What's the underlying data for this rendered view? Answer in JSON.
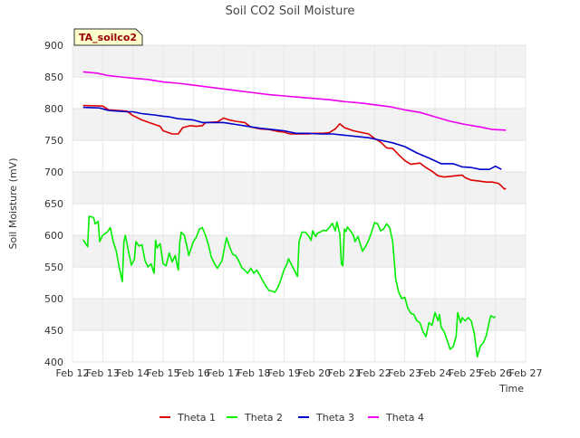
{
  "chart_data": {
    "type": "line",
    "title": "Soil CO2 Soil Moisture",
    "xlabel": "Time",
    "ylabel": "Soil Moisture (mV)",
    "badge": "TA_soilco2",
    "xlim": [
      0,
      15
    ],
    "ylim": [
      400,
      900
    ],
    "x_tick_labels": [
      "Feb 12",
      "Feb 13",
      "Feb 14",
      "Feb 15",
      "Feb 16",
      "Feb 17",
      "Feb 18",
      "Feb 19",
      "Feb 20",
      "Feb 21",
      "Feb 22",
      "Feb 23",
      "Feb 24",
      "Feb 25",
      "Feb 26",
      "Feb 27"
    ],
    "y_ticks": [
      400,
      450,
      500,
      550,
      600,
      650,
      700,
      750,
      800,
      850,
      900
    ],
    "legend": [
      "Theta 1",
      "Theta 2",
      "Theta 3",
      "Theta 4"
    ],
    "series": [
      {
        "name": "Theta 1",
        "color": "#dd0000",
        "points": [
          [
            0.35,
            805
          ],
          [
            1.0,
            804
          ],
          [
            1.2,
            798
          ],
          [
            1.8,
            796
          ],
          [
            2.0,
            789
          ],
          [
            2.3,
            782
          ],
          [
            2.6,
            777
          ],
          [
            2.9,
            772
          ],
          [
            3.0,
            765
          ],
          [
            3.3,
            760
          ],
          [
            3.5,
            760
          ],
          [
            3.65,
            770
          ],
          [
            3.9,
            773
          ],
          [
            4.1,
            772
          ],
          [
            4.3,
            773
          ],
          [
            4.4,
            778
          ],
          [
            4.8,
            779
          ],
          [
            5.0,
            785
          ],
          [
            5.2,
            782
          ],
          [
            5.4,
            780
          ],
          [
            5.7,
            778
          ],
          [
            5.9,
            771
          ],
          [
            6.2,
            768
          ],
          [
            6.5,
            767
          ],
          [
            6.8,
            764
          ],
          [
            7.0,
            763
          ],
          [
            7.2,
            760
          ],
          [
            7.5,
            760
          ],
          [
            7.8,
            760
          ],
          [
            8.0,
            761
          ],
          [
            8.3,
            761
          ],
          [
            8.5,
            762
          ],
          [
            8.7,
            768
          ],
          [
            8.85,
            776
          ],
          [
            9.0,
            770
          ],
          [
            9.3,
            765
          ],
          [
            9.6,
            762
          ],
          [
            9.8,
            760
          ],
          [
            10.0,
            753
          ],
          [
            10.2,
            747
          ],
          [
            10.4,
            738
          ],
          [
            10.6,
            737
          ],
          [
            10.8,
            727
          ],
          [
            11.0,
            718
          ],
          [
            11.2,
            712
          ],
          [
            11.5,
            714
          ],
          [
            11.7,
            707
          ],
          [
            11.9,
            701
          ],
          [
            12.1,
            694
          ],
          [
            12.3,
            692
          ],
          [
            12.5,
            693
          ],
          [
            12.7,
            694
          ],
          [
            12.9,
            695
          ],
          [
            13.0,
            691
          ],
          [
            13.2,
            687
          ],
          [
            13.4,
            686
          ],
          [
            13.7,
            684
          ],
          [
            13.9,
            684
          ],
          [
            14.1,
            682
          ],
          [
            14.2,
            678
          ],
          [
            14.3,
            673
          ],
          [
            14.35,
            674
          ]
        ]
      },
      {
        "name": "Theta 2",
        "color": "#00ee00",
        "points": [
          [
            0.35,
            593
          ],
          [
            0.5,
            582
          ],
          [
            0.55,
            630
          ],
          [
            0.7,
            628
          ],
          [
            0.75,
            618
          ],
          [
            0.85,
            622
          ],
          [
            0.9,
            590
          ],
          [
            1.0,
            600
          ],
          [
            1.15,
            605
          ],
          [
            1.25,
            612
          ],
          [
            1.35,
            590
          ],
          [
            1.45,
            575
          ],
          [
            1.55,
            548
          ],
          [
            1.65,
            527
          ],
          [
            1.7,
            590
          ],
          [
            1.75,
            600
          ],
          [
            1.85,
            575
          ],
          [
            1.95,
            553
          ],
          [
            2.05,
            562
          ],
          [
            2.1,
            590
          ],
          [
            2.2,
            583
          ],
          [
            2.3,
            585
          ],
          [
            2.4,
            560
          ],
          [
            2.5,
            550
          ],
          [
            2.6,
            555
          ],
          [
            2.7,
            540
          ],
          [
            2.75,
            592
          ],
          [
            2.8,
            580
          ],
          [
            2.9,
            587
          ],
          [
            3.0,
            555
          ],
          [
            3.1,
            552
          ],
          [
            3.2,
            572
          ],
          [
            3.3,
            558
          ],
          [
            3.4,
            568
          ],
          [
            3.5,
            545
          ],
          [
            3.55,
            588
          ],
          [
            3.6,
            605
          ],
          [
            3.7,
            600
          ],
          [
            3.8,
            580
          ],
          [
            3.85,
            568
          ],
          [
            4.0,
            590
          ],
          [
            4.1,
            597
          ],
          [
            4.2,
            610
          ],
          [
            4.3,
            612
          ],
          [
            4.4,
            600
          ],
          [
            4.5,
            585
          ],
          [
            4.6,
            565
          ],
          [
            4.7,
            555
          ],
          [
            4.8,
            548
          ],
          [
            4.95,
            560
          ],
          [
            5.05,
            585
          ],
          [
            5.1,
            596
          ],
          [
            5.2,
            582
          ],
          [
            5.3,
            570
          ],
          [
            5.4,
            568
          ],
          [
            5.5,
            560
          ],
          [
            5.6,
            549
          ],
          [
            5.7,
            545
          ],
          [
            5.8,
            540
          ],
          [
            5.9,
            548
          ],
          [
            6.0,
            540
          ],
          [
            6.1,
            545
          ],
          [
            6.2,
            537
          ],
          [
            6.3,
            528
          ],
          [
            6.4,
            520
          ],
          [
            6.5,
            513
          ],
          [
            6.6,
            512
          ],
          [
            6.7,
            510
          ],
          [
            6.8,
            518
          ],
          [
            6.9,
            530
          ],
          [
            7.0,
            545
          ],
          [
            7.1,
            555
          ],
          [
            7.15,
            563
          ],
          [
            7.3,
            549
          ],
          [
            7.45,
            535
          ],
          [
            7.5,
            590
          ],
          [
            7.6,
            605
          ],
          [
            7.7,
            605
          ],
          [
            7.8,
            600
          ],
          [
            7.9,
            592
          ],
          [
            7.95,
            607
          ],
          [
            8.05,
            598
          ],
          [
            8.1,
            603
          ],
          [
            8.2,
            605
          ],
          [
            8.3,
            608
          ],
          [
            8.4,
            607
          ],
          [
            8.5,
            612
          ],
          [
            8.6,
            619
          ],
          [
            8.7,
            607
          ],
          [
            8.75,
            621
          ],
          [
            8.85,
            602
          ],
          [
            8.9,
            555
          ],
          [
            8.95,
            552
          ],
          [
            9.0,
            610
          ],
          [
            9.05,
            606
          ],
          [
            9.1,
            613
          ],
          [
            9.2,
            607
          ],
          [
            9.3,
            600
          ],
          [
            9.35,
            590
          ],
          [
            9.45,
            598
          ],
          [
            9.5,
            590
          ],
          [
            9.6,
            575
          ],
          [
            9.7,
            582
          ],
          [
            9.8,
            592
          ],
          [
            9.9,
            605
          ],
          [
            10.0,
            620
          ],
          [
            10.1,
            618
          ],
          [
            10.2,
            607
          ],
          [
            10.3,
            610
          ],
          [
            10.4,
            618
          ],
          [
            10.5,
            612
          ],
          [
            10.6,
            590
          ],
          [
            10.7,
            530
          ],
          [
            10.8,
            510
          ],
          [
            10.9,
            500
          ],
          [
            11.0,
            502
          ],
          [
            11.1,
            485
          ],
          [
            11.2,
            477
          ],
          [
            11.3,
            475
          ],
          [
            11.4,
            465
          ],
          [
            11.5,
            462
          ],
          [
            11.6,
            448
          ],
          [
            11.7,
            440
          ],
          [
            11.8,
            462
          ],
          [
            11.9,
            458
          ],
          [
            12.0,
            478
          ],
          [
            12.1,
            465
          ],
          [
            12.15,
            475
          ],
          [
            12.2,
            455
          ],
          [
            12.3,
            448
          ],
          [
            12.4,
            435
          ],
          [
            12.5,
            420
          ],
          [
            12.6,
            424
          ],
          [
            12.7,
            440
          ],
          [
            12.75,
            478
          ],
          [
            12.85,
            462
          ],
          [
            12.9,
            470
          ],
          [
            13.0,
            465
          ],
          [
            13.1,
            470
          ],
          [
            13.2,
            465
          ],
          [
            13.3,
            445
          ],
          [
            13.4,
            408
          ],
          [
            13.5,
            425
          ],
          [
            13.6,
            430
          ],
          [
            13.7,
            442
          ],
          [
            13.8,
            465
          ],
          [
            13.85,
            473
          ],
          [
            13.95,
            470
          ],
          [
            14.0,
            472
          ]
        ]
      },
      {
        "name": "Theta 3",
        "color": "#0000cc",
        "points": [
          [
            0.35,
            802
          ],
          [
            0.9,
            801
          ],
          [
            1.2,
            797
          ],
          [
            1.8,
            795
          ],
          [
            2.0,
            795
          ],
          [
            2.3,
            792
          ],
          [
            2.7,
            790
          ],
          [
            3.0,
            788
          ],
          [
            3.2,
            787
          ],
          [
            3.5,
            784
          ],
          [
            4.0,
            782
          ],
          [
            4.3,
            778
          ],
          [
            4.6,
            778
          ],
          [
            5.0,
            778
          ],
          [
            5.4,
            775
          ],
          [
            5.8,
            772
          ],
          [
            6.2,
            769
          ],
          [
            6.6,
            767
          ],
          [
            7.0,
            765
          ],
          [
            7.4,
            761
          ],
          [
            7.8,
            761
          ],
          [
            8.2,
            760
          ],
          [
            8.6,
            760
          ],
          [
            9.0,
            758
          ],
          [
            9.4,
            756
          ],
          [
            9.8,
            754
          ],
          [
            10.2,
            750
          ],
          [
            10.6,
            746
          ],
          [
            11.0,
            740
          ],
          [
            11.4,
            730
          ],
          [
            11.8,
            722
          ],
          [
            12.2,
            713
          ],
          [
            12.6,
            713
          ],
          [
            12.9,
            708
          ],
          [
            13.2,
            707
          ],
          [
            13.5,
            704
          ],
          [
            13.8,
            704
          ],
          [
            14.0,
            709
          ],
          [
            14.2,
            704
          ]
        ]
      },
      {
        "name": "Theta 4",
        "color": "#ee00ee",
        "points": [
          [
            0.35,
            858
          ],
          [
            0.8,
            856
          ],
          [
            1.2,
            852
          ],
          [
            1.6,
            850
          ],
          [
            2.0,
            848
          ],
          [
            2.5,
            846
          ],
          [
            3.0,
            842
          ],
          [
            3.5,
            840
          ],
          [
            4.0,
            837
          ],
          [
            4.5,
            834
          ],
          [
            5.0,
            831
          ],
          [
            5.5,
            828
          ],
          [
            6.0,
            825
          ],
          [
            6.5,
            822
          ],
          [
            7.0,
            820
          ],
          [
            7.5,
            818
          ],
          [
            8.0,
            816
          ],
          [
            8.5,
            814
          ],
          [
            9.0,
            811
          ],
          [
            9.5,
            809
          ],
          [
            10.0,
            806
          ],
          [
            10.5,
            803
          ],
          [
            11.0,
            798
          ],
          [
            11.5,
            794
          ],
          [
            12.0,
            787
          ],
          [
            12.5,
            780
          ],
          [
            13.0,
            775
          ],
          [
            13.5,
            771
          ],
          [
            13.9,
            767
          ],
          [
            14.35,
            766
          ]
        ]
      }
    ]
  }
}
